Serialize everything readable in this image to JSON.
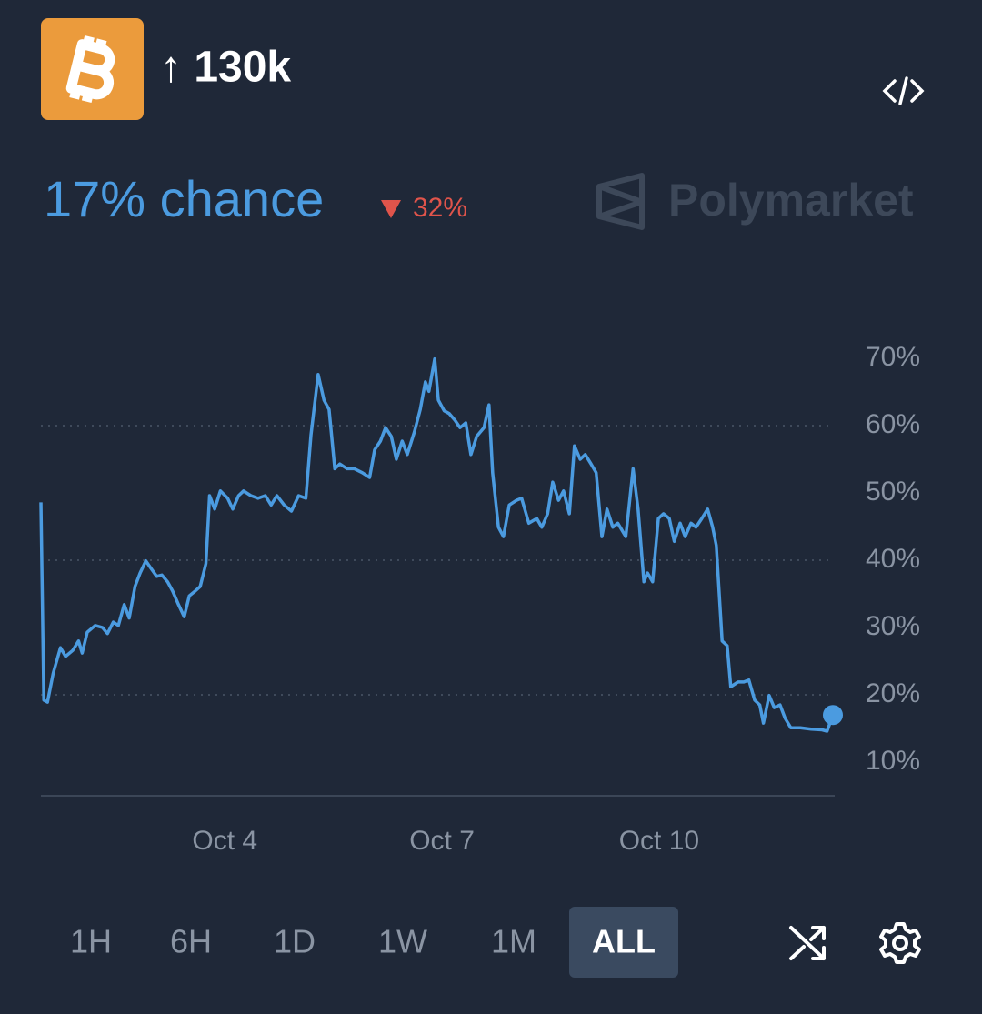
{
  "header": {
    "title": "↑ 130k",
    "chance": "17% chance",
    "change": "32%",
    "brand": "Polymarket"
  },
  "chart_data": {
    "type": "line",
    "x": [
      1.46,
      1.5,
      1.55,
      1.63,
      1.73,
      1.8,
      1.9,
      1.98,
      2.03,
      2.1,
      2.21,
      2.31,
      2.38,
      2.46,
      2.53,
      2.61,
      2.68,
      2.76,
      2.83,
      2.91,
      2.98,
      3.06,
      3.13,
      3.21,
      3.28,
      3.36,
      3.44,
      3.51,
      3.59,
      3.66,
      3.74,
      3.79,
      3.86,
      3.94,
      4.04,
      4.11,
      4.19,
      4.26,
      4.36,
      4.46,
      4.56,
      4.64,
      4.72,
      4.82,
      4.92,
      5.02,
      5.12,
      5.19,
      5.29,
      5.37,
      5.44,
      5.52,
      5.59,
      5.69,
      5.79,
      5.9,
      6.0,
      6.07,
      6.15,
      6.22,
      6.3,
      6.37,
      6.45,
      6.52,
      6.62,
      6.7,
      6.77,
      6.82,
      6.9,
      6.95,
      7.03,
      7.1,
      7.18,
      7.25,
      7.33,
      7.4,
      7.48,
      7.58,
      7.65,
      7.7,
      7.78,
      7.85,
      7.93,
      8.03,
      8.1,
      8.2,
      8.31,
      8.38,
      8.46,
      8.53,
      8.61,
      8.68,
      8.76,
      8.83,
      8.91,
      8.98,
      9.06,
      9.13,
      9.21,
      9.28,
      9.36,
      9.43,
      9.54,
      9.64,
      9.71,
      9.79,
      9.84,
      9.91,
      9.99,
      10.06,
      10.14,
      10.21,
      10.29,
      10.36,
      10.44,
      10.51,
      10.59,
      10.67,
      10.74,
      10.79,
      10.87,
      10.94,
      10.99,
      11.09,
      11.17,
      11.24,
      11.32,
      11.39,
      11.44,
      11.52,
      11.59,
      11.67,
      11.74,
      11.82,
      11.95,
      12.1,
      12.25,
      12.32,
      12.4
    ],
    "series": [
      {
        "color": "#4b9be0",
        "values": [
          48.6,
          19.2,
          18.9,
          23.2,
          27.0,
          25.7,
          26.6,
          28.0,
          26.2,
          29.3,
          30.3,
          30.0,
          29.1,
          30.8,
          30.3,
          33.4,
          31.4,
          36.1,
          38.1,
          39.9,
          38.8,
          37.6,
          37.8,
          36.8,
          35.4,
          33.4,
          31.6,
          34.7,
          35.4,
          36.1,
          39.5,
          49.6,
          47.6,
          50.3,
          49.2,
          47.6,
          49.6,
          50.3,
          49.6,
          49.2,
          49.6,
          48.2,
          49.6,
          48.2,
          47.3,
          49.6,
          49.2,
          58.6,
          67.6,
          63.8,
          62.4,
          53.6,
          54.3,
          53.6,
          53.6,
          53.0,
          52.3,
          56.4,
          57.7,
          59.7,
          58.4,
          55.0,
          57.7,
          55.7,
          59.1,
          62.4,
          66.5,
          65.1,
          69.9,
          63.8,
          62.2,
          61.8,
          60.8,
          59.7,
          60.4,
          55.7,
          58.4,
          59.7,
          63.1,
          53.0,
          44.9,
          43.5,
          48.2,
          48.9,
          49.2,
          45.5,
          46.2,
          44.9,
          46.9,
          51.6,
          48.9,
          50.3,
          46.9,
          57.0,
          55.0,
          55.7,
          54.3,
          53.0,
          43.5,
          47.6,
          44.9,
          45.5,
          43.5,
          53.6,
          47.6,
          36.8,
          38.1,
          36.8,
          46.2,
          46.9,
          46.2,
          42.8,
          45.5,
          43.5,
          45.5,
          44.9,
          46.2,
          47.6,
          44.9,
          42.2,
          28.0,
          27.3,
          21.2,
          21.9,
          21.9,
          22.2,
          19.2,
          18.5,
          15.8,
          19.9,
          18.1,
          18.5,
          16.5,
          15.1,
          15.1,
          14.9,
          14.8,
          14.6,
          17.0
        ]
      }
    ],
    "xlim": [
      1.46,
      12.4
    ],
    "xticks": [
      {
        "value": 4,
        "label": "Oct 4"
      },
      {
        "value": 7,
        "label": "Oct 7"
      },
      {
        "value": 10,
        "label": "Oct 10"
      }
    ],
    "ylim": [
      5,
      75
    ],
    "yticks": [
      {
        "value": 10,
        "label": "10%"
      },
      {
        "value": 20,
        "label": "20%"
      },
      {
        "value": 30,
        "label": "30%"
      },
      {
        "value": 40,
        "label": "40%"
      },
      {
        "value": 50,
        "label": "50%"
      },
      {
        "value": 60,
        "label": "60%"
      },
      {
        "value": 70,
        "label": "70%"
      }
    ],
    "grid": true
  },
  "controls": {
    "ranges": [
      "1H",
      "6H",
      "1D",
      "1W",
      "1M",
      "ALL"
    ],
    "active": 5
  }
}
